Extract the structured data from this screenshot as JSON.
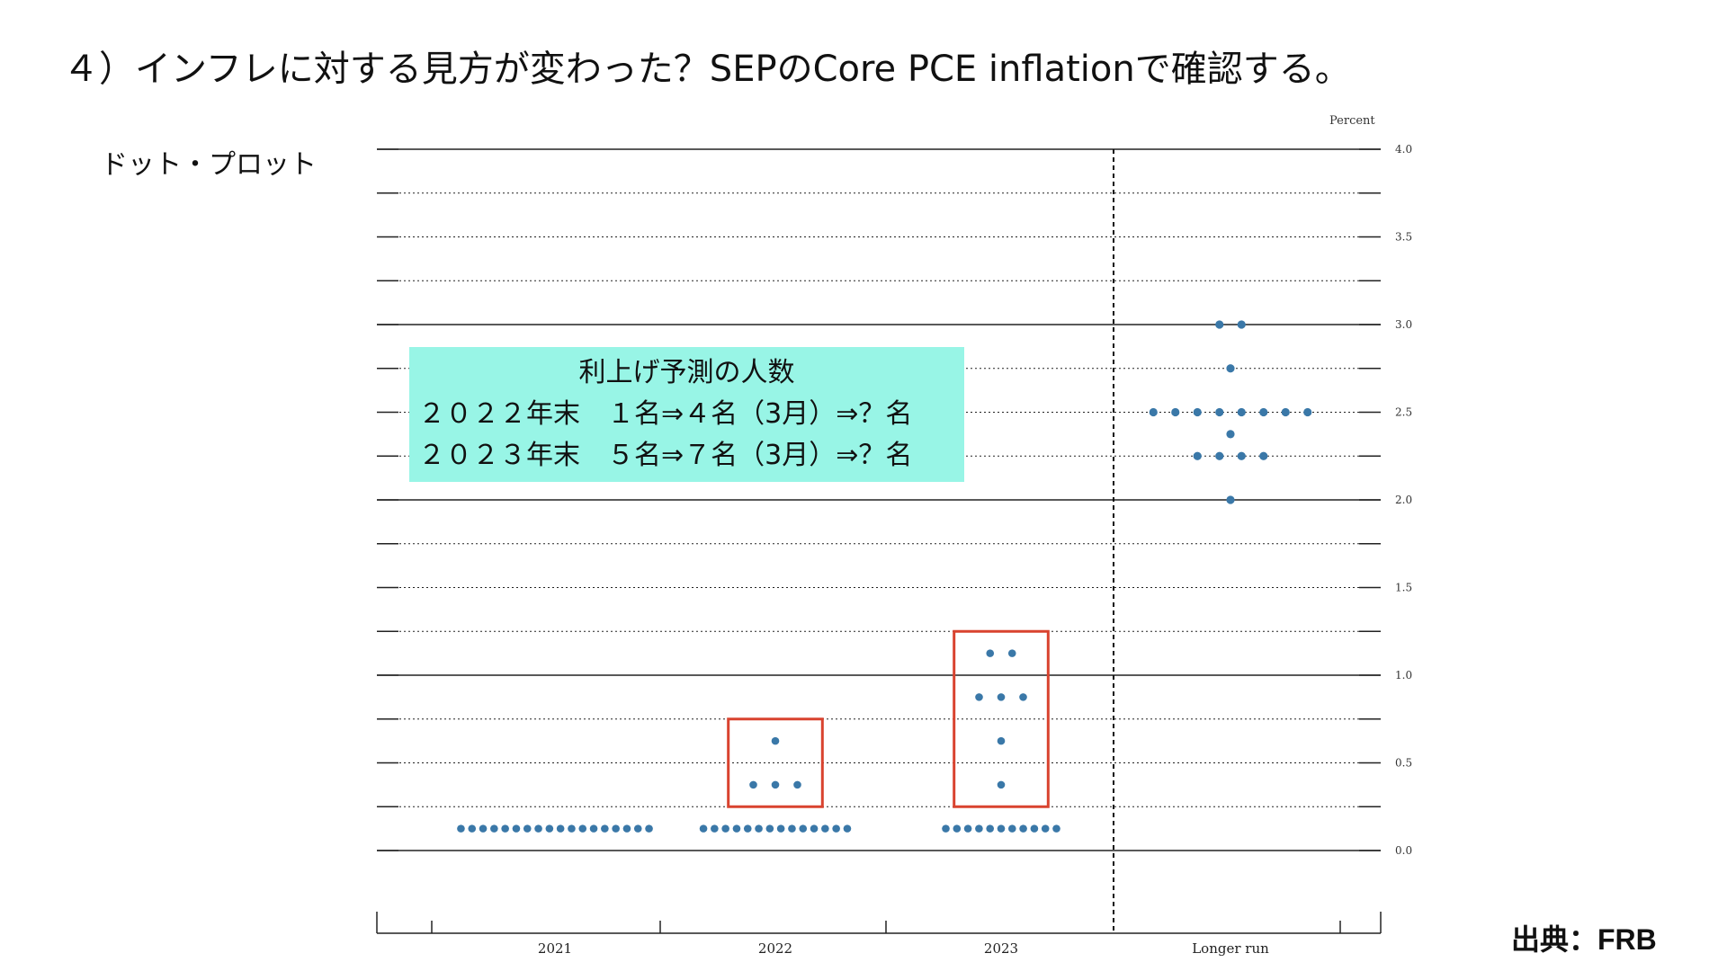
{
  "slide": {
    "title": "４）インフレに対する見方が変わった？SEPのCore PCE inflationで確認する。",
    "subtitle": "ドット・プロット",
    "source": "出典：FRB"
  },
  "callout": {
    "heading": "利上げ予測の人数",
    "line1": "２０２２年末　１名⇒４名（3月）⇒？名",
    "line2": "２０２３年末　５名⇒７名（3月）⇒？名"
  },
  "colors": {
    "dot": "#3a78a8",
    "highlight_box": "#d9432f",
    "callout_bg": "#98f5e6"
  },
  "chart_data": {
    "type": "scatter",
    "unit_label": "Percent",
    "ylim": [
      0.0,
      4.0
    ],
    "yticks": [
      "0.0",
      "0.5",
      "1.0",
      "1.5",
      "2.0",
      "2.5",
      "3.0",
      "3.5",
      "4.0"
    ],
    "categories": [
      "2021",
      "2022",
      "2023",
      "Longer run"
    ],
    "grid": true,
    "series": [
      {
        "category": "2021",
        "points": [
          {
            "y": 0.125,
            "count": 18
          }
        ]
      },
      {
        "category": "2022",
        "points": [
          {
            "y": 0.125,
            "count": 14
          },
          {
            "y": 0.375,
            "count": 3
          },
          {
            "y": 0.625,
            "count": 1
          }
        ]
      },
      {
        "category": "2023",
        "points": [
          {
            "y": 0.125,
            "count": 11
          },
          {
            "y": 0.375,
            "count": 1
          },
          {
            "y": 0.625,
            "count": 1
          },
          {
            "y": 0.875,
            "count": 3
          },
          {
            "y": 1.125,
            "count": 2
          }
        ]
      },
      {
        "category": "Longer run",
        "points": [
          {
            "y": 2.0,
            "count": 1
          },
          {
            "y": 2.25,
            "count": 4
          },
          {
            "y": 2.375,
            "count": 1
          },
          {
            "y": 2.5,
            "count": 8
          },
          {
            "y": 2.75,
            "count": 1
          },
          {
            "y": 3.0,
            "count": 2
          }
        ]
      }
    ],
    "highlights": [
      {
        "category": "2022",
        "y_range": [
          0.25,
          0.75
        ]
      },
      {
        "category": "2023",
        "y_range": [
          0.25,
          1.25
        ]
      }
    ]
  }
}
